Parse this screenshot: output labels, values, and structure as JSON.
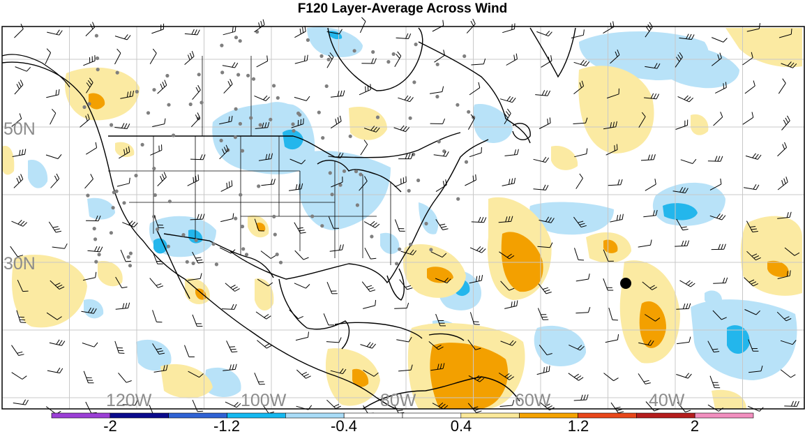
{
  "title": "F120 Layer-Average Across Wind",
  "map": {
    "lat_labels": [
      "50N",
      "30N"
    ],
    "lon_labels": [
      "120W",
      "100W",
      "80W",
      "60W",
      "40W"
    ]
  },
  "colorbar": {
    "colors": [
      "#9b3fd6",
      "#0a0a8c",
      "#2f62d4",
      "#14b8f0",
      "#a9dcf7",
      "#ffffff",
      "#ffffff",
      "#fbe99a",
      "#f5a300",
      "#e8471a",
      "#b51d1d",
      "#f28fbf"
    ],
    "tick_labels": [
      "-2",
      "-1.2",
      "-0.4",
      "0.4",
      "1.2",
      "2"
    ]
  },
  "palette": {
    "light_blue": "#b8e2f8",
    "mid_blue": "#23b6ec",
    "light_yellow": "#fbeaa2",
    "orange": "#f3a000",
    "gridline": "#c8c8c8",
    "station_dot": "#7f7f7f",
    "coastline": "#000000",
    "lat_lon_label": "#8c8c8c"
  }
}
